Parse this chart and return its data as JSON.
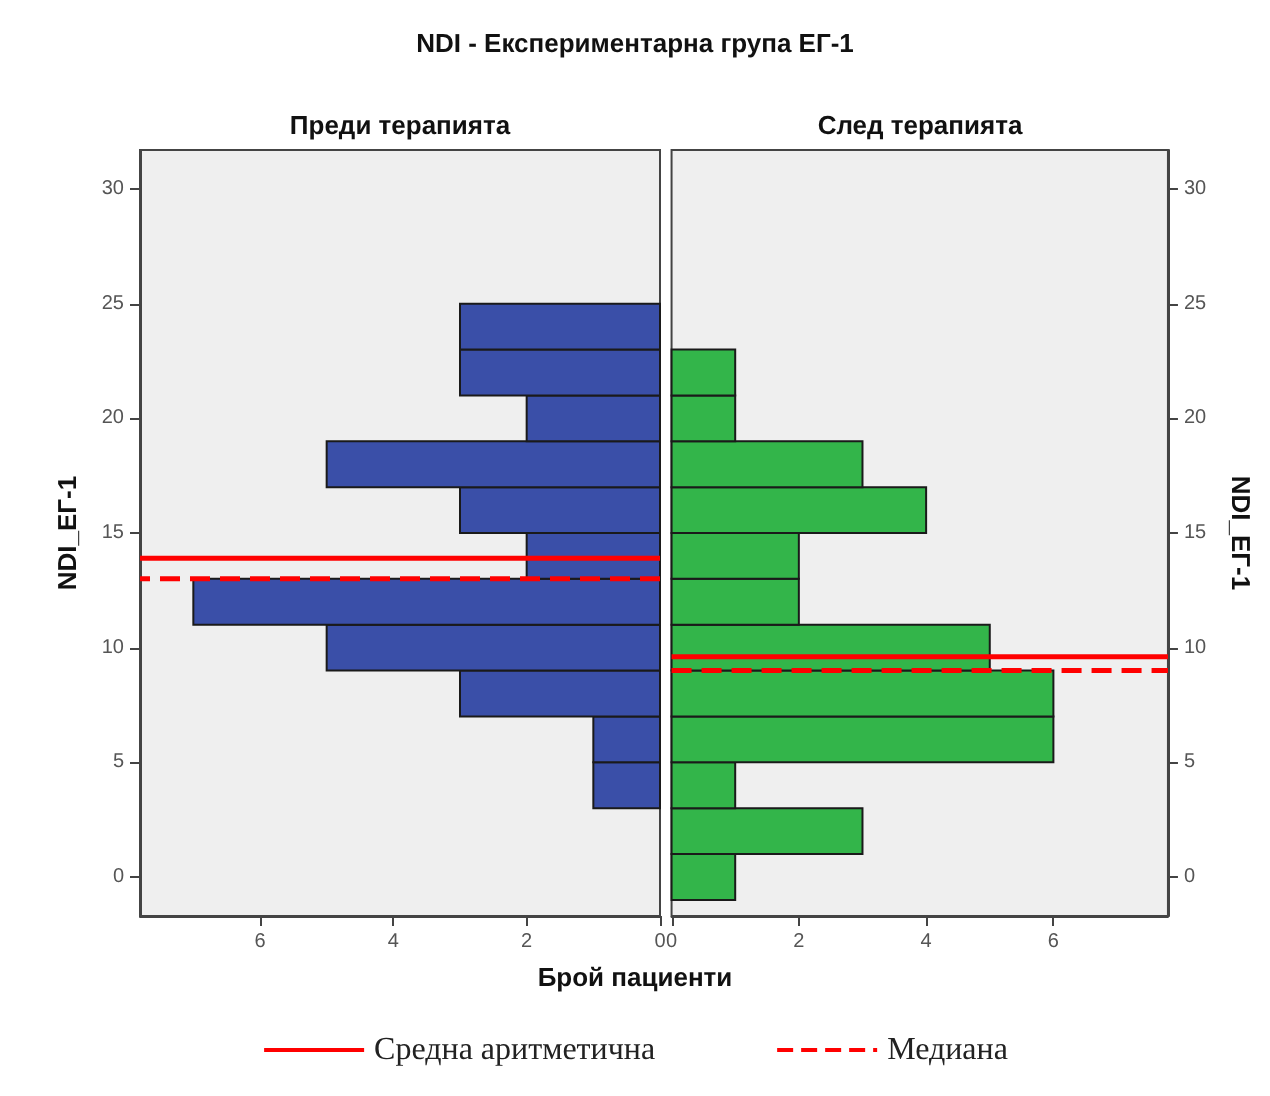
{
  "chart_data": [
    {
      "type": "histogram",
      "title": "NDI - Експериментарна група ЕГ-1",
      "subtitle": "Преди терапията",
      "xlabel": "Брой пациенти",
      "ylabel": "NDI_ЕГ-1",
      "orientation": "horizontal",
      "bins": [
        -1,
        1,
        3,
        5,
        7,
        9,
        11,
        13,
        15,
        17,
        19,
        21,
        23,
        25
      ],
      "values": [
        0,
        0,
        1,
        1,
        3,
        5,
        7,
        2,
        3,
        5,
        2,
        3,
        3
      ],
      "color": "#3a4fa8",
      "xlim": [
        7.8,
        0
      ],
      "xticks": [
        0,
        2,
        4,
        6
      ],
      "ylim": [
        -1.7,
        31.7
      ],
      "yticks": [
        0,
        5,
        10,
        15,
        20,
        25,
        30
      ],
      "grid": false,
      "legend": "bottom",
      "ref_lines": [
        {
          "axis": "y",
          "value": 13.9,
          "label": "Средна аритметична",
          "color": "#ff0000",
          "line_style": "solid"
        },
        {
          "axis": "y",
          "value": 13,
          "label": "Медиана",
          "color": "#ff0000",
          "line_style": "dashed"
        }
      ]
    },
    {
      "type": "histogram",
      "subtitle": "След терапията",
      "ylabel": "NDI_ЕГ-1",
      "orientation": "horizontal",
      "bins": [
        -1,
        1,
        3,
        5,
        7,
        9,
        11,
        13,
        15,
        17,
        19,
        21,
        23,
        25
      ],
      "values": [
        1,
        3,
        1,
        6,
        6,
        5,
        2,
        2,
        4,
        3,
        1,
        1,
        0
      ],
      "color": "#33b54a",
      "xlim": [
        0,
        7.8
      ],
      "xticks": [
        0,
        2,
        4,
        6
      ],
      "ylim": [
        -1.7,
        31.7
      ],
      "yticks": [
        0,
        5,
        10,
        15,
        20,
        25,
        30
      ],
      "grid": false,
      "ref_lines": [
        {
          "axis": "y",
          "value": 9.6,
          "color": "#ff0000",
          "line_style": "solid"
        },
        {
          "axis": "y",
          "value": 9,
          "color": "#ff0000",
          "line_style": "dashed"
        }
      ]
    }
  ]
}
